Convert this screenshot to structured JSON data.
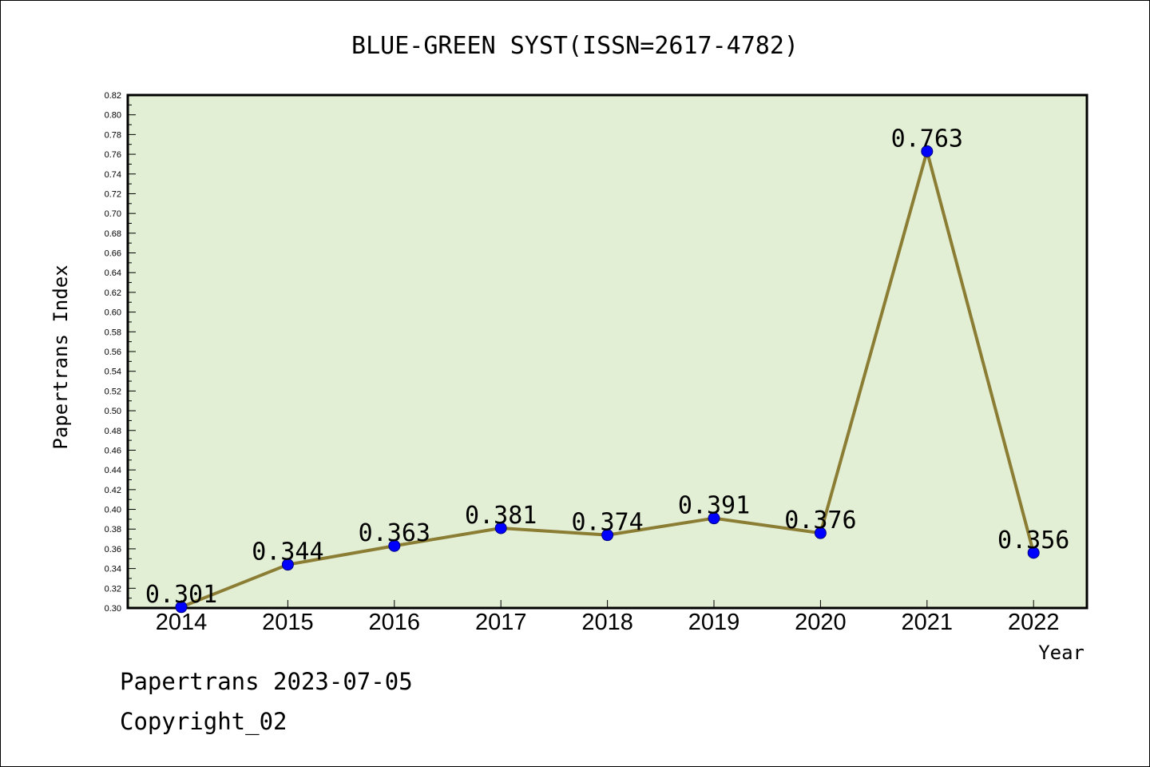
{
  "chart_data": {
    "type": "line",
    "title": "BLUE-GREEN SYST(ISSN=2617-4782)",
    "xlabel": "Year",
    "ylabel": "Papertrans Index",
    "categories": [
      "2014",
      "2015",
      "2016",
      "2017",
      "2018",
      "2019",
      "2020",
      "2021",
      "2022"
    ],
    "series": [
      {
        "values": [
          0.301,
          0.344,
          0.363,
          0.381,
          0.374,
          0.391,
          0.376,
          0.763,
          0.356
        ]
      }
    ],
    "data_labels": [
      "0.301",
      "0.344",
      "0.363",
      "0.381",
      "0.374",
      "0.391",
      "0.376",
      "0.763",
      "0.356"
    ],
    "ylim": [
      0.3,
      0.82
    ],
    "yticks": [
      "0.30",
      "0.32",
      "0.34",
      "0.36",
      "0.38",
      "0.40",
      "0.42",
      "0.44",
      "0.46",
      "0.48",
      "0.50",
      "0.52",
      "0.54",
      "0.56",
      "0.58",
      "0.60",
      "0.62",
      "0.64",
      "0.66",
      "0.68",
      "0.70",
      "0.72",
      "0.74",
      "0.76",
      "0.78",
      "0.80",
      "0.82"
    ],
    "grid": false,
    "legend": "none",
    "colors": {
      "plot_background": "#e2efd5",
      "line": "#8b7d33",
      "marker": "#0000ff",
      "marker_edge": "#000080"
    }
  },
  "footer": {
    "date_line": "Papertrans 2023-07-05",
    "copyright_line": "Copyright_02"
  }
}
